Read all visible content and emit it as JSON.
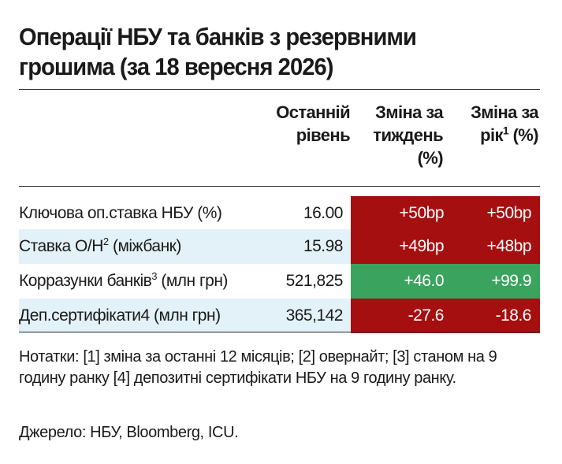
{
  "title": "Операції НБУ та банків з резервними грошима (за 18 вересня 2026)",
  "headers": {
    "last_line1": "Останній",
    "last_line2": "рівень",
    "week_line1": "Зміна за",
    "week_line2": "тиждень",
    "week_line3": "(%)",
    "year_line1": "Зміна за",
    "year_line2_pre": "рік",
    "year_line2_sup": "1",
    "year_line2_post": " (%)"
  },
  "rows": [
    {
      "label": "Ключова оп.ставка НБУ (%)",
      "label_sup": "",
      "label_post": "",
      "last": "16.00",
      "week": "+50bp",
      "year": "+50bp",
      "week_color": "#a50f0f",
      "year_color": "#a50f0f"
    },
    {
      "label": "Ставка O/H",
      "label_sup": "2",
      "label_post": " (міжбанк)",
      "last": "15.98",
      "week": "+49bp",
      "year": "+48bp",
      "week_color": "#a50f0f",
      "year_color": "#a50f0f"
    },
    {
      "label": "Корразунки банків",
      "label_sup": "3",
      "label_post": " (млн грн)",
      "last": "521,825",
      "week": "+46.0",
      "year": "+99.9",
      "week_color": "#3aa35e",
      "year_color": "#3aa35e"
    },
    {
      "label": "Деп.сертифікати4 (млн грн)",
      "label_sup": "",
      "label_post": "",
      "last": "365,142",
      "week": "-27.6",
      "year": "-18.6",
      "week_color": "#a50f0f",
      "year_color": "#a50f0f"
    }
  ],
  "notes": "Нотатки: [1] зміна за останні 12 місяців; [2] овернайт; [3] станом на 9 годину ранку [4] депозитні сертифікати НБУ на 9 годину ранку.",
  "source": "Джерело: НБУ, Bloomberg, ICU."
}
